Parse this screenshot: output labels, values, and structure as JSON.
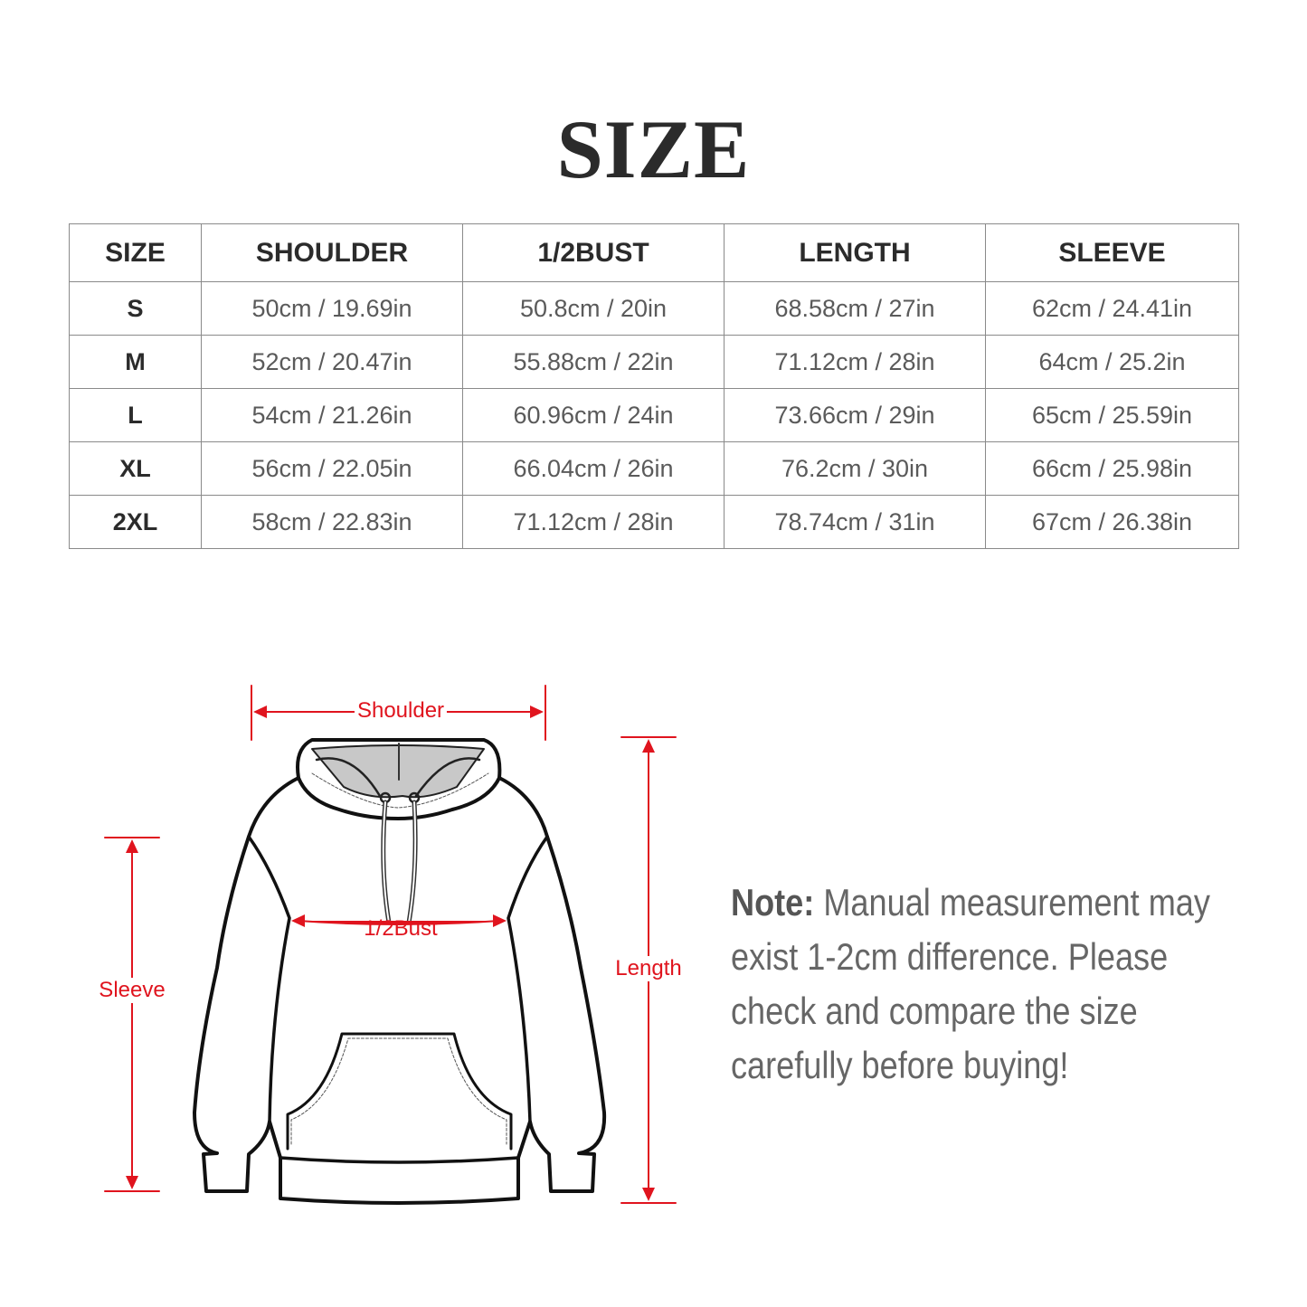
{
  "title": "SIZE",
  "table": {
    "headers": [
      "SIZE",
      "SHOULDER",
      "1/2BUST",
      "LENGTH",
      "SLEEVE"
    ],
    "rows": [
      [
        "S",
        "50cm / 19.69in",
        "50.8cm / 20in",
        "68.58cm / 27in",
        "62cm / 24.41in"
      ],
      [
        "M",
        "52cm / 20.47in",
        "55.88cm / 22in",
        "71.12cm / 28in",
        "64cm / 25.2in"
      ],
      [
        "L",
        "54cm / 21.26in",
        "60.96cm / 24in",
        "73.66cm / 29in",
        "65cm / 25.59in"
      ],
      [
        "XL",
        "56cm / 22.05in",
        "66.04cm / 26in",
        "76.2cm / 30in",
        "66cm / 25.98in"
      ],
      [
        "2XL",
        "58cm / 22.83in",
        "71.12cm / 28in",
        "78.74cm / 31in",
        "67cm / 26.38in"
      ]
    ]
  },
  "diagram": {
    "shoulder": "Shoulder",
    "bust": "1/2Bust",
    "length": "Length",
    "sleeve": "Sleeve",
    "icon": "hoodie-illustration",
    "measure_color": "#e0141e"
  },
  "note": {
    "label": "Note:",
    "text": "Manual measurement may exist 1-2cm difference. Please check and compare the size carefully before buying!"
  }
}
